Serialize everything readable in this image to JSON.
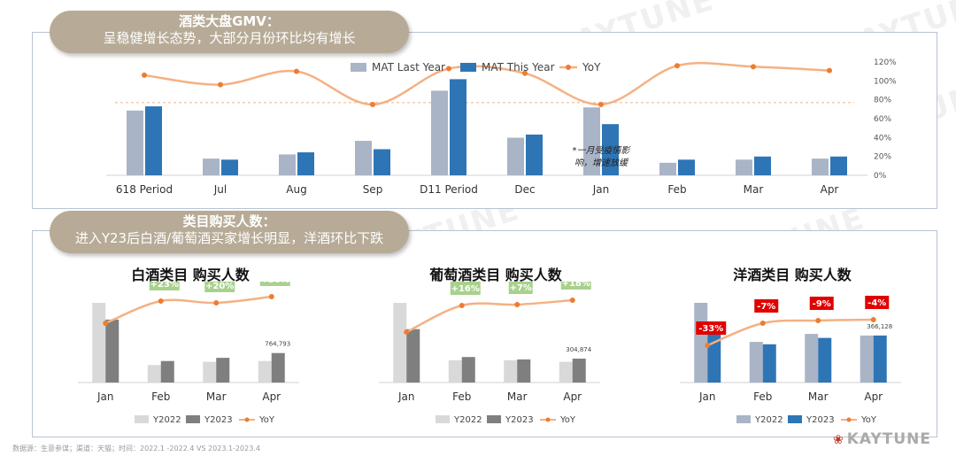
{
  "colors": {
    "mat_last": "#a9b4c6",
    "mat_this": "#2e75b6",
    "yoy": "#f4b183",
    "gray_light": "#d9d9d9",
    "gray_dark": "#7f7f7f",
    "blue_light": "#a9b4c6",
    "blue_dark": "#2e75b6",
    "green_label": "#a9d18e",
    "red_label": "#e00000",
    "pill": "#b7ab97"
  },
  "top_section": {
    "title_line1": "酒类大盘GMV：",
    "title_line2": "呈稳健增长态势，大部分月份环比均有增长"
  },
  "bottom_section": {
    "title_line1": "类目购买人数：",
    "title_line2": "进入Y23后白酒/葡萄酒买家增长明显，洋酒环比下跌"
  },
  "watermark": "KAYTUNE",
  "footer": "数据源：生意参谋；渠道：天猫；时间：2022.1 -2022.4 VS 2023.1-2023.4",
  "brand": {
    "mark": "❀",
    "name": "KAYTUNE"
  },
  "chart_data": [
    {
      "type": "bar",
      "id": "gmv",
      "categories": [
        "618 Period",
        "Jul",
        "Aug",
        "Sep",
        "D11 Period",
        "Dec",
        "Jan",
        "Feb",
        "Mar",
        "Apr"
      ],
      "series": [
        {
          "name": "MAT Last Year",
          "values": [
            62,
            16,
            20,
            33,
            81,
            36,
            65,
            12,
            15,
            16
          ]
        },
        {
          "name": "MAT This Year",
          "values": [
            66,
            15,
            22,
            25,
            92,
            39,
            49,
            15,
            18,
            18
          ]
        }
      ],
      "line": {
        "name": "YoY",
        "values": [
          106,
          96,
          110,
          75,
          113,
          108,
          75,
          116,
          115,
          111
        ]
      },
      "y2_ticks": [
        "0%",
        "20%",
        "40%",
        "60%",
        "80%",
        "100%",
        "120%"
      ],
      "y2lim": [
        0,
        120
      ],
      "reference_line": 77,
      "annotation": {
        "lines": [
          "*一月受疫情影",
          "响，增速放缓"
        ],
        "category": "Jan"
      },
      "legend": "top"
    },
    {
      "type": "bar",
      "id": "baijiu",
      "title": "白酒类目 购买人数",
      "categories": [
        "Jan",
        "Feb",
        "Mar",
        "Apr"
      ],
      "series": [
        {
          "name": "Y2022",
          "values": [
            100,
            22,
            26,
            27
          ]
        },
        {
          "name": "Y2023",
          "values": [
            79,
            27,
            31,
            37
          ]
        }
      ],
      "line": {
        "name": "YoY",
        "values": [
          67,
          92,
          90,
          97
        ]
      },
      "yoy_labels": [
        "",
        "+23%",
        "+20%",
        "+36%"
      ],
      "value_label": {
        "category": "Apr",
        "text": "764,793"
      },
      "legend": "bottom"
    },
    {
      "type": "bar",
      "id": "putao",
      "title": "葡萄酒类目 购买人数",
      "categories": [
        "Jan",
        "Feb",
        "Mar",
        "Apr"
      ],
      "series": [
        {
          "name": "Y2022",
          "values": [
            100,
            28,
            28,
            26
          ]
        },
        {
          "name": "Y2023",
          "values": [
            67,
            32,
            29,
            30
          ]
        }
      ],
      "line": {
        "name": "YoY",
        "values": [
          57,
          87,
          88,
          93
        ]
      },
      "yoy_labels": [
        "",
        "+16%",
        "+7%",
        "+18%"
      ],
      "value_label": {
        "category": "Apr",
        "text": "304,874"
      },
      "legend": "bottom"
    },
    {
      "type": "bar",
      "id": "yangjiu",
      "title": "洋酒类目 购买人数",
      "categories": [
        "Jan",
        "Feb",
        "Mar",
        "Apr"
      ],
      "series": [
        {
          "name": "Y2022",
          "values": [
            100,
            51,
            61,
            59
          ]
        },
        {
          "name": "Y2023",
          "values": [
            68,
            48,
            56,
            59
          ]
        }
      ],
      "line": {
        "name": "YoY",
        "values": [
          42,
          67,
          70,
          71
        ]
      },
      "yoy_labels": [
        "-33%",
        "-7%",
        "-9%",
        "-4%"
      ],
      "value_label": {
        "category": "Apr",
        "text": "366,128"
      },
      "legend": "bottom"
    }
  ]
}
